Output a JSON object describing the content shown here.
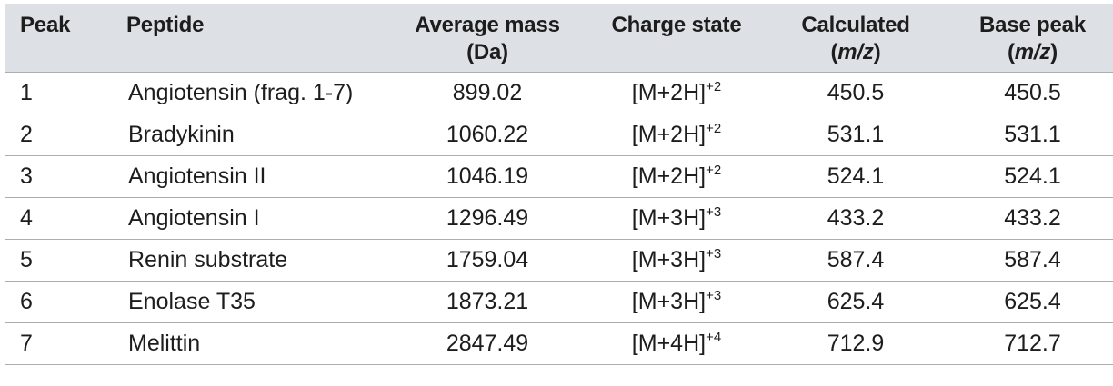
{
  "table": {
    "headers": {
      "peak": "Peak",
      "peptide": "Peptide",
      "average_mass_line1": "Average mass",
      "average_mass_line2": "(Da)",
      "charge_state": "Charge state",
      "calculated_line1": "Calculated",
      "calculated_line2_open": "(",
      "calculated_line2_unit": "m/z",
      "calculated_line2_close": ")",
      "base_peak_line1": "Base peak",
      "base_peak_line2_open": "(",
      "base_peak_line2_unit": "m/z",
      "base_peak_line2_close": ")"
    },
    "rows": [
      {
        "peak": "1",
        "peptide": "Angiotensin (frag. 1-7)",
        "average_mass": "899.02",
        "charge_base": "[M+2H]",
        "charge_sup": "+2",
        "calculated": "450.5",
        "base_peak": "450.5"
      },
      {
        "peak": "2",
        "peptide": "Bradykinin",
        "average_mass": "1060.22",
        "charge_base": "[M+2H]",
        "charge_sup": "+2",
        "calculated": "531.1",
        "base_peak": "531.1"
      },
      {
        "peak": "3",
        "peptide": "Angiotensin II",
        "average_mass": "1046.19",
        "charge_base": "[M+2H]",
        "charge_sup": "+2",
        "calculated": "524.1",
        "base_peak": "524.1"
      },
      {
        "peak": "4",
        "peptide": "Angiotensin I",
        "average_mass": "1296.49",
        "charge_base": "[M+3H]",
        "charge_sup": "+3",
        "calculated": "433.2",
        "base_peak": "433.2"
      },
      {
        "peak": "5",
        "peptide": "Renin substrate",
        "average_mass": "1759.04",
        "charge_base": "[M+3H]",
        "charge_sup": "+3",
        "calculated": "587.4",
        "base_peak": "587.4"
      },
      {
        "peak": "6",
        "peptide": "Enolase T35",
        "average_mass": "1873.21",
        "charge_base": "[M+3H]",
        "charge_sup": "+3",
        "calculated": "625.4",
        "base_peak": "625.4"
      },
      {
        "peak": "7",
        "peptide": "Melittin",
        "average_mass": "2847.49",
        "charge_base": "[M+4H]",
        "charge_sup": "+4",
        "calculated": "712.9",
        "base_peak": "712.7"
      }
    ]
  },
  "colors": {
    "header_background": "#dde1e5",
    "rule": "#a9aeb3",
    "text": "#1d1d1d"
  }
}
